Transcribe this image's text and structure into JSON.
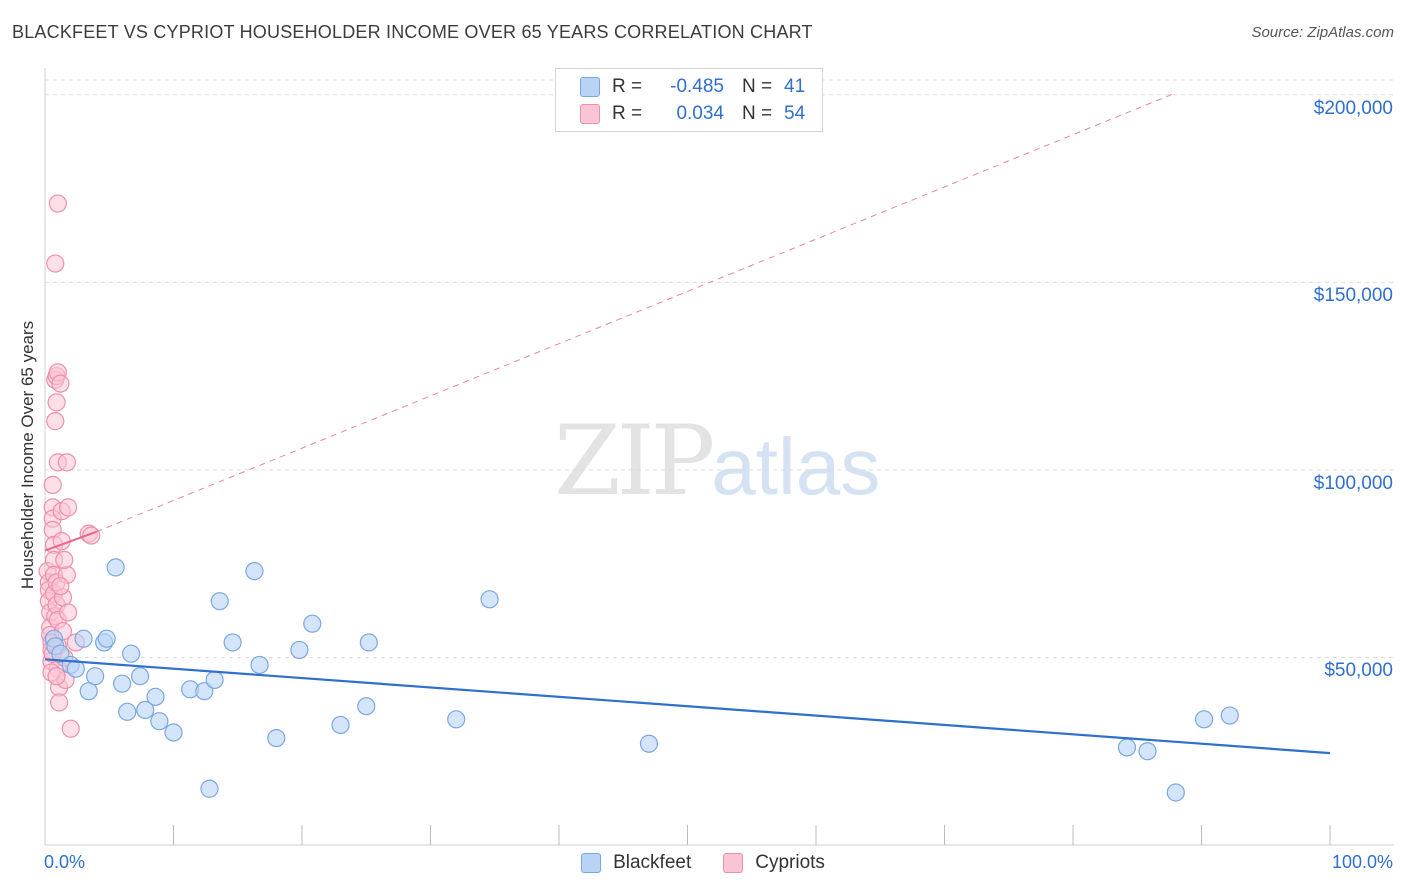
{
  "title": "BLACKFEET VS CYPRIOT HOUSEHOLDER INCOME OVER 65 YEARS CORRELATION CHART",
  "source": "Source: ZipAtlas.com",
  "watermark": {
    "zip": "ZIP",
    "atlas": "atlas"
  },
  "legend": {
    "rows": [
      {
        "r_label": "R =",
        "r_value": "-0.485",
        "n_label": "N =",
        "n_value": "41"
      },
      {
        "r_label": "R =",
        "r_value": "0.034",
        "n_label": "N =",
        "n_value": "54"
      }
    ]
  },
  "bottom_legend": {
    "blackfeet": "Blackfeet",
    "cypriots": "Cypriots"
  },
  "axes": {
    "x_min_label": "0.0%",
    "x_max_label": "100.0%",
    "y_tick_labels": [
      "$50,000",
      "$100,000",
      "$150,000",
      "$200,000"
    ]
  },
  "colors": {
    "blackfeet_fill": "#b9d3f5",
    "blackfeet_stroke": "#7aa7e3",
    "blackfeet_line": "#2f6fcf",
    "cypriots_fill": "#f9c4d3",
    "cypriots_stroke": "#ef8fab",
    "cypriots_line": "#e5678c",
    "grid": "#dcdcdc",
    "tick_text": "#2f6fcf"
  },
  "chart_data": {
    "type": "scatter",
    "title": "BLACKFEET VS CYPRIOT HOUSEHOLDER INCOME OVER 65 YEARS CORRELATION CHART",
    "xlabel": "",
    "ylabel": "Householder Income Over 65 years",
    "xlim": [
      0,
      100
    ],
    "ylim": [
      0,
      205000
    ],
    "y_ticks": [
      50000,
      100000,
      150000,
      200000
    ],
    "grid": true,
    "legend_position": "top-center",
    "series": [
      {
        "name": "Blackfeet",
        "r": -0.485,
        "n": 41,
        "trend": {
          "x": [
            0,
            100
          ],
          "y": [
            49500,
            24500
          ],
          "style": "solid"
        },
        "points": [
          [
            0.7,
            55000
          ],
          [
            0.8,
            53000
          ],
          [
            1.2,
            51000
          ],
          [
            2.0,
            48000
          ],
          [
            2.4,
            47000
          ],
          [
            3.0,
            55000
          ],
          [
            3.4,
            41000
          ],
          [
            3.9,
            45000
          ],
          [
            4.6,
            54000
          ],
          [
            4.8,
            55000
          ],
          [
            5.5,
            74000
          ],
          [
            6.0,
            43000
          ],
          [
            6.4,
            35500
          ],
          [
            6.7,
            51000
          ],
          [
            7.4,
            45000
          ],
          [
            7.8,
            36000
          ],
          [
            8.6,
            39500
          ],
          [
            8.9,
            33000
          ],
          [
            10.0,
            30000
          ],
          [
            11.3,
            41500
          ],
          [
            12.4,
            41000
          ],
          [
            12.8,
            15000
          ],
          [
            13.2,
            44000
          ],
          [
            13.6,
            65000
          ],
          [
            14.6,
            54000
          ],
          [
            16.3,
            73000
          ],
          [
            16.7,
            48000
          ],
          [
            18.0,
            28500
          ],
          [
            19.8,
            52000
          ],
          [
            20.8,
            59000
          ],
          [
            23.0,
            32000
          ],
          [
            25.0,
            37000
          ],
          [
            25.2,
            54000
          ],
          [
            32.0,
            33500
          ],
          [
            34.6,
            65500
          ],
          [
            47.0,
            27000
          ],
          [
            84.2,
            26000
          ],
          [
            85.8,
            25000
          ],
          [
            88.0,
            14000
          ],
          [
            90.2,
            33500
          ],
          [
            92.2,
            34500
          ]
        ]
      },
      {
        "name": "Cypriots",
        "r": 0.034,
        "n": 54,
        "trend_solid": {
          "x": [
            0,
            4
          ],
          "y": [
            78500,
            83500
          ]
        },
        "trend_dashed": {
          "x": [
            4,
            88
          ],
          "y": [
            83500,
            200500
          ]
        },
        "points": [
          [
            0.2,
            73000
          ],
          [
            0.3,
            70000
          ],
          [
            0.3,
            68000
          ],
          [
            0.3,
            65000
          ],
          [
            0.4,
            62000
          ],
          [
            0.4,
            58000
          ],
          [
            0.4,
            56000
          ],
          [
            0.5,
            54000
          ],
          [
            0.5,
            52000
          ],
          [
            0.5,
            49000
          ],
          [
            0.6,
            96000
          ],
          [
            0.6,
            90000
          ],
          [
            0.6,
            87000
          ],
          [
            0.6,
            84000
          ],
          [
            0.7,
            80000
          ],
          [
            0.7,
            76000
          ],
          [
            0.7,
            72000
          ],
          [
            0.7,
            67000
          ],
          [
            0.8,
            155000
          ],
          [
            0.8,
            124000
          ],
          [
            0.8,
            113000
          ],
          [
            0.8,
            61000
          ],
          [
            0.9,
            125000
          ],
          [
            0.9,
            118000
          ],
          [
            0.9,
            70000
          ],
          [
            0.9,
            64000
          ],
          [
            1.0,
            171000
          ],
          [
            1.0,
            126000
          ],
          [
            1.0,
            102000
          ],
          [
            1.0,
            60000
          ],
          [
            1.0,
            53000
          ],
          [
            1.0,
            47000
          ],
          [
            1.1,
            42000
          ],
          [
            1.1,
            38000
          ],
          [
            1.2,
            123000
          ],
          [
            1.3,
            89000
          ],
          [
            1.3,
            81000
          ],
          [
            1.4,
            66000
          ],
          [
            1.4,
            57000
          ],
          [
            1.5,
            50000
          ],
          [
            1.6,
            44000
          ],
          [
            1.7,
            102000
          ],
          [
            1.7,
            72000
          ],
          [
            1.8,
            90000
          ],
          [
            1.8,
            62000
          ],
          [
            2.0,
            31000
          ],
          [
            3.4,
            83000
          ],
          [
            3.6,
            82500
          ],
          [
            0.5,
            46000
          ],
          [
            0.6,
            51000
          ],
          [
            0.9,
            45000
          ],
          [
            1.2,
            69000
          ],
          [
            1.5,
            76000
          ],
          [
            2.4,
            54000
          ]
        ]
      }
    ]
  }
}
